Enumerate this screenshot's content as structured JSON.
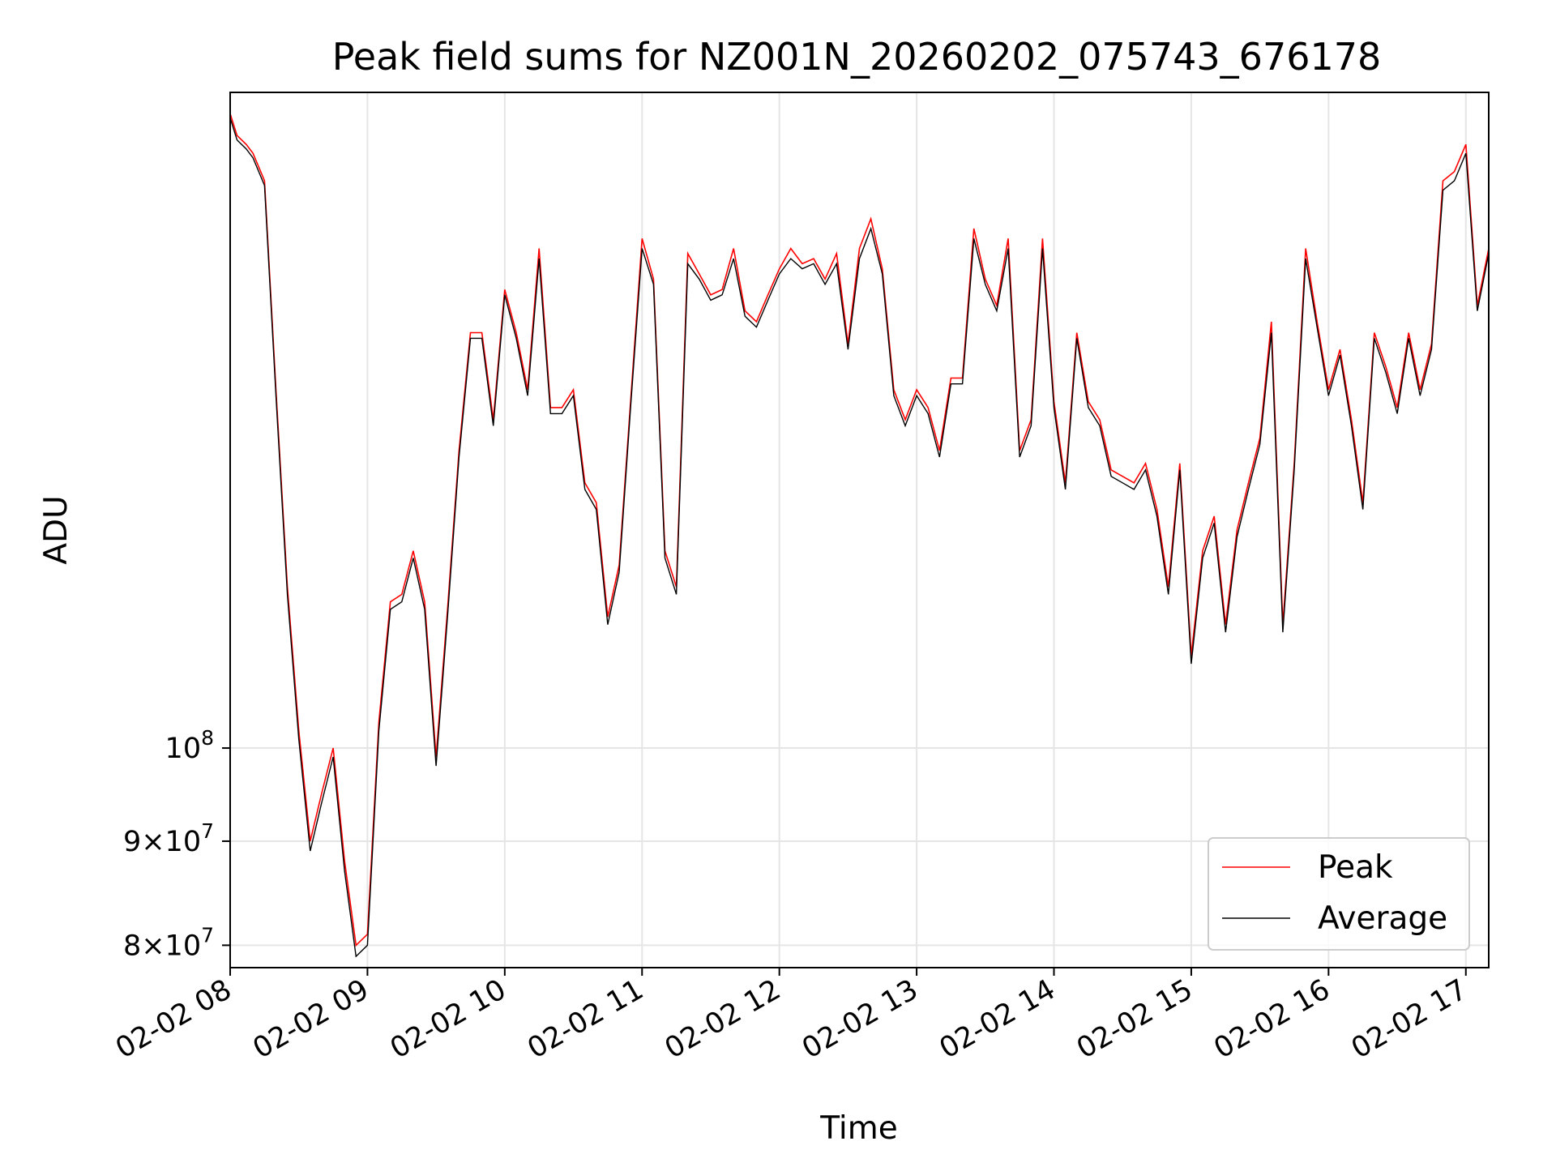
{
  "chart_data": {
    "type": "line",
    "title": "Peak field sums for NZ001N_20260202_075743_676178",
    "xlabel": "Time",
    "ylabel": "ADU",
    "yscale": "log",
    "ylim": [
      78000000,
      210000000
    ],
    "xlim": [
      "2026-02-02 08:00",
      "2026-02-02 17:10"
    ],
    "grid": true,
    "legend_position": "lower-right",
    "x_tick_labels": [
      "02-02 08",
      "02-02 09",
      "02-02 10",
      "02-02 11",
      "02-02 12",
      "02-02 13",
      "02-02 14",
      "02-02 15",
      "02-02 16",
      "02-02 17"
    ],
    "x_tick_times": [
      "2026-02-02 08:00",
      "2026-02-02 09:00",
      "2026-02-02 10:00",
      "2026-02-02 11:00",
      "2026-02-02 12:00",
      "2026-02-02 13:00",
      "2026-02-02 14:00",
      "2026-02-02 15:00",
      "2026-02-02 16:00",
      "2026-02-02 17:00"
    ],
    "y_ticks": [
      {
        "value": 80000000,
        "mant": "8",
        "exp": "7"
      },
      {
        "value": 90000000,
        "mant": "9",
        "exp": "7"
      },
      {
        "value": 100000000,
        "mant": "",
        "exp": "8"
      }
    ],
    "series": [
      {
        "name": "Peak",
        "color": "#ff0000"
      },
      {
        "name": "Average",
        "color": "#000000"
      }
    ],
    "x": [
      "08:00",
      "08:03",
      "08:07",
      "08:10",
      "08:15",
      "08:20",
      "08:25",
      "08:30",
      "08:35",
      "08:40",
      "08:45",
      "08:50",
      "08:55",
      "09:00",
      "09:05",
      "09:10",
      "09:15",
      "09:20",
      "09:25",
      "09:30",
      "09:35",
      "09:40",
      "09:45",
      "09:50",
      "09:55",
      "10:00",
      "10:05",
      "10:10",
      "10:15",
      "10:20",
      "10:25",
      "10:30",
      "10:35",
      "10:40",
      "10:45",
      "10:50",
      "10:55",
      "11:00",
      "11:05",
      "11:10",
      "11:15",
      "11:20",
      "11:25",
      "11:30",
      "11:35",
      "11:40",
      "11:45",
      "11:50",
      "11:55",
      "12:00",
      "12:05",
      "12:10",
      "12:15",
      "12:20",
      "12:25",
      "12:30",
      "12:35",
      "12:40",
      "12:45",
      "12:50",
      "12:55",
      "13:00",
      "13:05",
      "13:10",
      "13:15",
      "13:20",
      "13:25",
      "13:30",
      "13:35",
      "13:40",
      "13:45",
      "13:50",
      "13:55",
      "14:00",
      "14:05",
      "14:10",
      "14:15",
      "14:20",
      "14:25",
      "14:30",
      "14:35",
      "14:40",
      "14:45",
      "14:50",
      "14:55",
      "15:00",
      "15:05",
      "15:10",
      "15:15",
      "15:20",
      "15:25",
      "15:30",
      "15:35",
      "15:40",
      "15:45",
      "15:50",
      "15:55",
      "16:00",
      "16:05",
      "16:10",
      "16:15",
      "16:20",
      "16:25",
      "16:30",
      "16:35",
      "16:40",
      "16:45",
      "16:50",
      "16:55",
      "17:00",
      "17:05",
      "17:10"
    ],
    "peak": [
      205000000,
      200000000,
      198000000,
      196000000,
      190000000,
      150000000,
      120000000,
      102000000,
      90000000,
      95000000,
      100000000,
      88000000,
      80000000,
      81000000,
      103000000,
      118000000,
      119000000,
      125000000,
      118000000,
      99000000,
      117000000,
      140000000,
      160000000,
      160000000,
      145000000,
      168000000,
      160000000,
      150000000,
      176000000,
      147000000,
      147000000,
      150000000,
      135000000,
      132000000,
      116000000,
      123000000,
      148000000,
      178000000,
      170000000,
      125000000,
      120000000,
      175000000,
      171000000,
      167000000,
      168000000,
      176000000,
      164000000,
      162000000,
      167000000,
      172000000,
      176000000,
      173000000,
      174000000,
      170000000,
      175000000,
      158000000,
      176000000,
      182000000,
      172000000,
      150000000,
      145000000,
      150000000,
      147000000,
      140000000,
      152000000,
      152000000,
      180000000,
      170000000,
      165000000,
      178000000,
      140000000,
      145000000,
      178000000,
      148000000,
      135000000,
      160000000,
      148000000,
      145000000,
      137000000,
      136000000,
      135000000,
      138000000,
      131000000,
      120000000,
      138000000,
      111000000,
      125000000,
      130000000,
      115000000,
      128000000,
      135000000,
      142000000,
      162000000,
      115000000,
      138000000,
      176000000,
      162000000,
      150000000,
      157000000,
      145000000,
      132000000,
      160000000,
      154000000,
      147000000,
      160000000,
      150000000,
      158000000,
      190000000,
      192000000,
      198000000,
      165000000,
      176000000
    ],
    "average": [
      204000000,
      199000000,
      197000000,
      195000000,
      189000000,
      149000000,
      119000000,
      101000000,
      89000000,
      94000000,
      99000000,
      87000000,
      79000000,
      80000000,
      102000000,
      117000000,
      118000000,
      124000000,
      117000000,
      98000000,
      116000000,
      139000000,
      159000000,
      159000000,
      144000000,
      167000000,
      159000000,
      149000000,
      174000000,
      146000000,
      146000000,
      149000000,
      134000000,
      131000000,
      115000000,
      122000000,
      147000000,
      176000000,
      169000000,
      124000000,
      119000000,
      173000000,
      170000000,
      166000000,
      167000000,
      174000000,
      163000000,
      161000000,
      166000000,
      171000000,
      174000000,
      172000000,
      173000000,
      169000000,
      173000000,
      157000000,
      174000000,
      180000000,
      171000000,
      149000000,
      144000000,
      149000000,
      146000000,
      139000000,
      151000000,
      151000000,
      178000000,
      169000000,
      164000000,
      176000000,
      139000000,
      144000000,
      176000000,
      147000000,
      134000000,
      159000000,
      147000000,
      144000000,
      136000000,
      135000000,
      134000000,
      137000000,
      130000000,
      119000000,
      137000000,
      110000000,
      124000000,
      129000000,
      114000000,
      127000000,
      134000000,
      141000000,
      160000000,
      114000000,
      137000000,
      174000000,
      161000000,
      149000000,
      156000000,
      144000000,
      131000000,
      159000000,
      153000000,
      146000000,
      159000000,
      149000000,
      157000000,
      188000000,
      190000000,
      196000000,
      164000000,
      175000000
    ]
  }
}
